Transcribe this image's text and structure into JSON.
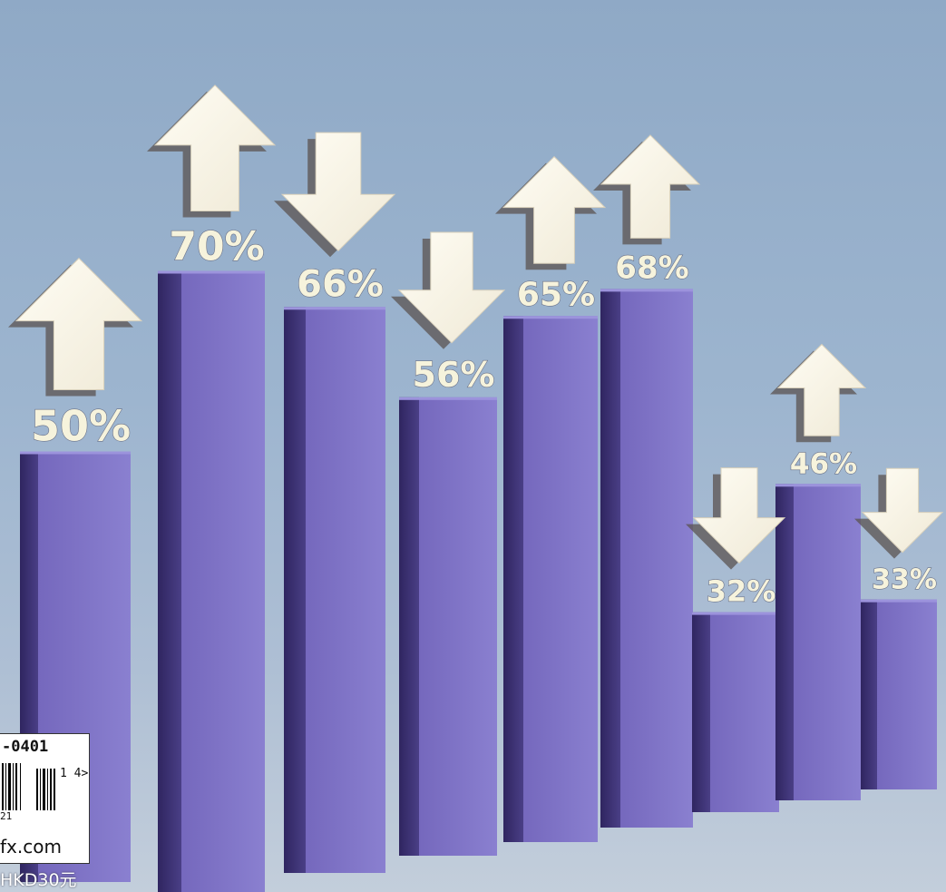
{
  "chart_data": {
    "type": "bar",
    "values": [
      50,
      70,
      66,
      56,
      65,
      68,
      32,
      46,
      33
    ],
    "labels": [
      "50%",
      "70%",
      "66%",
      "56%",
      "65%",
      "68%",
      "32%",
      "46%",
      "33%"
    ],
    "trend": [
      "up",
      "up",
      "down",
      "down",
      "up",
      "up",
      "down",
      "up",
      "down"
    ],
    "bar_color": "#7e74c8"
  },
  "barcode": {
    "code": "-0401",
    "addon": "1 4>",
    "digits": "21",
    "url": "fx.com"
  },
  "price": "HKD30元"
}
